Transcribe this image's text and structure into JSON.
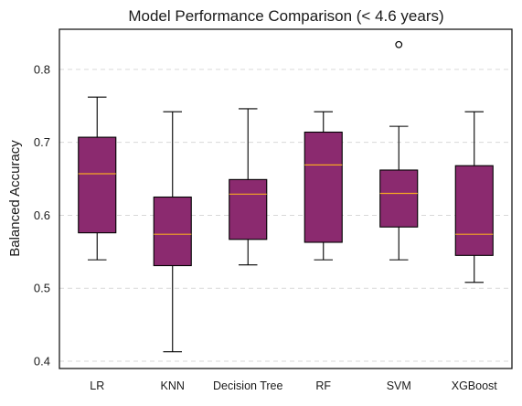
{
  "chart_data": {
    "type": "box",
    "title": "Model Performance Comparison (< 4.6 years)",
    "xlabel": "",
    "ylabel": "Balanced Accuracy",
    "ylim": [
      0.39,
      0.855
    ],
    "yticks": [
      "0.4",
      "0.5",
      "0.6",
      "0.7",
      "0.8"
    ],
    "grid": "y-dashed",
    "categories": [
      "LR",
      "KNN",
      "Decision Tree",
      "RF",
      "SVM",
      "XGBoost"
    ],
    "boxes": [
      {
        "label": "LR",
        "whisker_low": 0.539,
        "q1": 0.576,
        "median": 0.657,
        "q3": 0.707,
        "whisker_high": 0.762,
        "outliers": []
      },
      {
        "label": "KNN",
        "whisker_low": 0.413,
        "q1": 0.531,
        "median": 0.574,
        "q3": 0.625,
        "whisker_high": 0.742,
        "outliers": []
      },
      {
        "label": "Decision Tree",
        "whisker_low": 0.532,
        "q1": 0.567,
        "median": 0.629,
        "q3": 0.649,
        "whisker_high": 0.746,
        "outliers": []
      },
      {
        "label": "RF",
        "whisker_low": 0.539,
        "q1": 0.563,
        "median": 0.669,
        "q3": 0.714,
        "whisker_high": 0.742,
        "outliers": []
      },
      {
        "label": "SVM",
        "whisker_low": 0.539,
        "q1": 0.584,
        "median": 0.63,
        "q3": 0.662,
        "whisker_high": 0.722,
        "outliers": [
          0.834
        ]
      },
      {
        "label": "XGBoost",
        "whisker_low": 0.508,
        "q1": 0.545,
        "median": 0.574,
        "q3": 0.668,
        "whisker_high": 0.742,
        "outliers": []
      }
    ],
    "colors": {
      "box_fill": "#8b2a6f",
      "box_edge": "#000000",
      "median_line": "#f5a623",
      "grid": "#d9d9d9",
      "axes_edge": "#1a1a1a"
    }
  }
}
